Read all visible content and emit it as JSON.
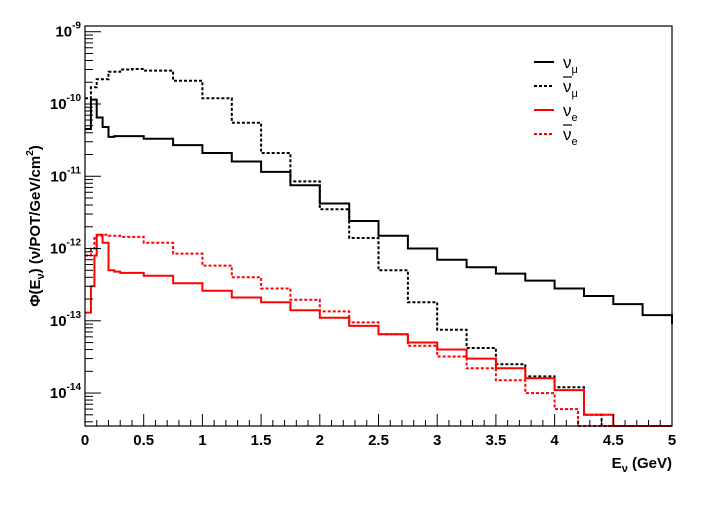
{
  "chart_data": {
    "type": "line",
    "style": "step histogram",
    "xlabel": {
      "main": "E",
      "sub": "ν",
      "rest": " (GeV)"
    },
    "ylabel": {
      "pre": "Φ(E",
      "sub": "ν",
      "mid": ") (ν/POT/GeV/cm",
      "sup": "2",
      "post": ")"
    },
    "xlim": [
      0,
      5
    ],
    "ylim": [
      3.5e-15,
      1.2e-09
    ],
    "yscale": "log",
    "grid": false,
    "legend_position": "top-right",
    "x_ticks": [
      {
        "value": 0,
        "label": "0"
      },
      {
        "value": 0.5,
        "label": "0.5"
      },
      {
        "value": 1,
        "label": "1"
      },
      {
        "value": 1.5,
        "label": "1.5"
      },
      {
        "value": 2,
        "label": "2"
      },
      {
        "value": 2.5,
        "label": "2.5"
      },
      {
        "value": 3,
        "label": "3"
      },
      {
        "value": 3.5,
        "label": "3.5"
      },
      {
        "value": 4,
        "label": "4"
      },
      {
        "value": 4.5,
        "label": "4.5"
      },
      {
        "value": 5,
        "label": "5"
      }
    ],
    "y_ticks": [
      {
        "value": 1e-14,
        "base": "10",
        "exp": "-14"
      },
      {
        "value": 1e-13,
        "base": "10",
        "exp": "-13"
      },
      {
        "value": 1e-12,
        "base": "10",
        "exp": "-12"
      },
      {
        "value": 1e-11,
        "base": "10",
        "exp": "-11"
      },
      {
        "value": 1e-10,
        "base": "10",
        "exp": "-10"
      },
      {
        "value": 1e-09,
        "base": "10",
        "exp": "-9"
      }
    ],
    "series": [
      {
        "name": "ν_μ",
        "symbol": "ν",
        "subscript": "μ",
        "bar": false,
        "color": "#000000",
        "dash": "solid",
        "x": [
          0,
          0.05,
          0.1,
          0.15,
          0.2,
          0.25,
          0.3,
          0.5,
          0.75,
          1,
          1.25,
          1.5,
          1.75,
          2,
          2.25,
          2.5,
          2.75,
          3,
          3.25,
          3.5,
          3.75,
          4,
          4.25,
          4.5,
          4.75,
          5
        ],
        "y": [
          4.5e-11,
          1.15e-10,
          6.5e-11,
          4.8e-11,
          3.5e-11,
          3.6e-11,
          3.6e-11,
          3.3e-11,
          2.7e-11,
          2.1e-11,
          1.6e-11,
          1.15e-11,
          7.5e-12,
          4.2e-12,
          2.4e-12,
          1.5e-12,
          1e-12,
          7e-13,
          5.5e-13,
          4.5e-13,
          3.6e-13,
          2.8e-13,
          2.2e-13,
          1.7e-13,
          1.2e-13,
          9e-14
        ]
      },
      {
        "name": "ν̄_μ",
        "symbol": "ν",
        "subscript": "μ",
        "bar": true,
        "color": "#000000",
        "dash": "dashed",
        "x": [
          0,
          0.05,
          0.1,
          0.2,
          0.3,
          0.4,
          0.5,
          0.75,
          1,
          1.25,
          1.5,
          1.75,
          2,
          2.25,
          2.5,
          2.75,
          3,
          3.25,
          3.5,
          3.75,
          4,
          4.25,
          4.4
        ],
        "y": [
          1.2e-10,
          1.7e-10,
          2.2e-10,
          2.8e-10,
          3e-10,
          3.05e-10,
          2.9e-10,
          2.1e-10,
          1.2e-10,
          5.5e-11,
          2.1e-11,
          8.5e-12,
          3.5e-12,
          1.4e-12,
          5e-13,
          1.8e-13,
          7.5e-14,
          4.2e-14,
          2.5e-14,
          1.7e-14,
          1.2e-14,
          5e-15,
          3.5e-15
        ]
      },
      {
        "name": "ν_e",
        "symbol": "ν",
        "subscript": "e",
        "bar": false,
        "color": "#ff0000",
        "dash": "solid",
        "x": [
          0,
          0.05,
          0.08,
          0.1,
          0.15,
          0.2,
          0.25,
          0.3,
          0.5,
          0.75,
          1,
          1.25,
          1.5,
          1.75,
          2,
          2.25,
          2.5,
          2.75,
          3,
          3.25,
          3.5,
          3.75,
          4,
          4.25,
          4.5
        ],
        "y": [
          1.3e-13,
          3e-13,
          8e-13,
          1.55e-12,
          1.2e-12,
          5e-13,
          4.8e-13,
          4.6e-13,
          4.2e-13,
          3.3e-13,
          2.6e-13,
          2.1e-13,
          1.8e-13,
          1.4e-13,
          1.1e-13,
          8.5e-14,
          6.5e-14,
          5e-14,
          4e-14,
          3e-14,
          2.2e-14,
          1.6e-14,
          1.1e-14,
          5e-15,
          3.5e-15
        ]
      },
      {
        "name": "ν̄_e",
        "symbol": "ν",
        "subscript": "e",
        "bar": true,
        "color": "#ff0000",
        "dash": "dashed",
        "x": [
          0,
          0.05,
          0.08,
          0.1,
          0.15,
          0.2,
          0.3,
          0.5,
          0.75,
          1,
          1.25,
          1.5,
          1.75,
          2,
          2.25,
          2.5,
          2.75,
          3,
          3.25,
          3.5,
          3.75,
          4,
          4.2
        ],
        "y": [
          8e-13,
          1e-12,
          1.4e-12,
          1.5e-12,
          1.55e-12,
          1.5e-12,
          1.45e-12,
          1.2e-12,
          8.5e-13,
          5.8e-13,
          4e-13,
          2.8e-13,
          1.95e-13,
          1.35e-13,
          9.5e-14,
          6.5e-14,
          4.5e-14,
          3.2e-14,
          2.2e-14,
          1.5e-14,
          1e-14,
          6e-15,
          3.5e-15
        ]
      }
    ]
  }
}
